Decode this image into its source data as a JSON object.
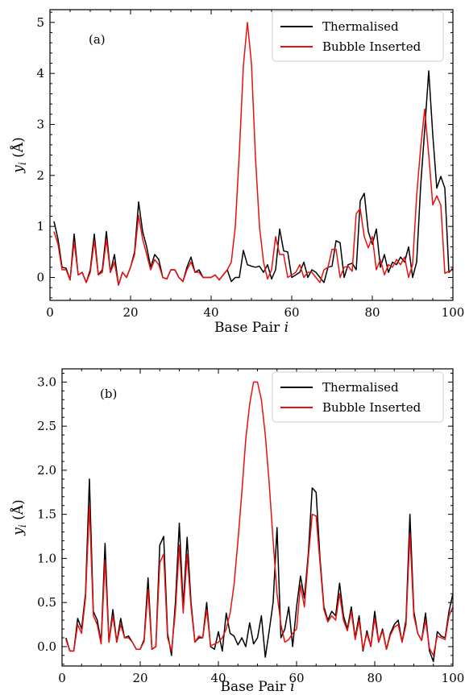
{
  "chart_data": [
    {
      "type": "line",
      "panel_label": "(a)",
      "xlabel": "Base Pair i",
      "ylabel": "y_i (Å)",
      "xlim": [
        0,
        100
      ],
      "ylim": [
        -0.45,
        5.25
      ],
      "x_ticks": [
        0,
        20,
        40,
        60,
        80,
        100
      ],
      "y_ticks": [
        0,
        1,
        2,
        3,
        4,
        5
      ],
      "legend_position": "top-right",
      "grid": false,
      "x": [
        1,
        2,
        3,
        4,
        5,
        6,
        7,
        8,
        9,
        10,
        11,
        12,
        13,
        14,
        15,
        16,
        17,
        18,
        19,
        20,
        21,
        22,
        23,
        24,
        25,
        26,
        27,
        28,
        29,
        30,
        31,
        32,
        33,
        34,
        35,
        36,
        37,
        38,
        39,
        40,
        41,
        42,
        43,
        44,
        45,
        46,
        47,
        48,
        49,
        50,
        51,
        52,
        53,
        54,
        55,
        56,
        57,
        58,
        59,
        60,
        61,
        62,
        63,
        64,
        65,
        66,
        67,
        68,
        69,
        70,
        71,
        72,
        73,
        74,
        75,
        76,
        77,
        78,
        79,
        80,
        81,
        82,
        83,
        84,
        85,
        86,
        87,
        88,
        89,
        90,
        91,
        92,
        93,
        94,
        95,
        96,
        97,
        98,
        99,
        100
      ],
      "series": [
        {
          "name": "Thermalised",
          "color": "#000000",
          "values": [
            1.1,
            0.75,
            0.2,
            0.18,
            -0.05,
            0.85,
            0.05,
            0.1,
            -0.1,
            0.15,
            0.85,
            0.05,
            0.15,
            0.9,
            0.1,
            0.45,
            -0.15,
            0.1,
            0.0,
            0.2,
            0.5,
            1.48,
            0.9,
            0.6,
            0.2,
            0.45,
            0.35,
            0.0,
            -0.03,
            0.15,
            0.15,
            0.0,
            -0.08,
            0.2,
            0.4,
            0.1,
            0.15,
            0.0,
            0.0,
            0.0,
            0.05,
            -0.05,
            0.05,
            0.15,
            -0.08,
            0.0,
            0.0,
            0.53,
            0.25,
            0.22,
            0.2,
            0.22,
            0.1,
            0.25,
            -0.03,
            0.15,
            0.95,
            0.52,
            0.5,
            0.0,
            0.05,
            0.1,
            0.3,
            0.0,
            0.15,
            0.1,
            0.0,
            -0.1,
            0.2,
            0.22,
            0.72,
            0.68,
            0.0,
            0.25,
            0.28,
            0.15,
            1.5,
            1.65,
            0.9,
            0.65,
            0.95,
            0.2,
            0.45,
            0.1,
            0.3,
            0.25,
            0.4,
            0.3,
            0.6,
            0.0,
            0.3,
            1.8,
            2.9,
            4.05,
            2.8,
            1.75,
            1.98,
            1.75,
            0.1,
            0.18
          ]
        },
        {
          "name": "Bubble Inserted",
          "color": "#e8110f",
          "values": [
            0.9,
            0.65,
            0.15,
            0.15,
            -0.05,
            0.7,
            0.05,
            0.1,
            -0.1,
            0.1,
            0.72,
            0.05,
            0.1,
            0.75,
            0.1,
            0.3,
            -0.15,
            0.1,
            0.0,
            0.2,
            0.45,
            1.22,
            0.75,
            0.45,
            0.15,
            0.35,
            0.25,
            0.0,
            -0.03,
            0.15,
            0.15,
            0.0,
            -0.08,
            0.15,
            0.3,
            0.1,
            0.1,
            0.0,
            0.0,
            0.0,
            0.05,
            -0.05,
            0.05,
            0.15,
            0.3,
            1.0,
            2.45,
            4.15,
            5.0,
            4.2,
            2.35,
            1.0,
            0.3,
            -0.03,
            0.15,
            0.8,
            0.45,
            0.45,
            0.0,
            0.05,
            0.1,
            0.25,
            0.0,
            0.1,
            0.1,
            0.0,
            -0.1,
            0.15,
            0.2,
            0.55,
            0.55,
            0.0,
            0.2,
            0.22,
            0.12,
            1.25,
            1.35,
            0.8,
            0.58,
            0.8,
            0.15,
            0.35,
            0.05,
            0.25,
            0.2,
            0.35,
            0.25,
            0.4,
            0.0,
            0.25,
            1.6,
            2.55,
            3.3,
            2.4,
            1.42,
            1.6,
            1.42,
            0.08,
            0.12,
            0.15
          ]
        }
      ]
    },
    {
      "type": "line",
      "panel_label": "(b)",
      "xlabel": "Base Pair i",
      "ylabel": "y_i (Å)",
      "xlim": [
        0,
        100
      ],
      "ylim": [
        -0.22,
        3.15
      ],
      "x_ticks": [
        0,
        20,
        40,
        60,
        80,
        100
      ],
      "y_ticks": [
        0.0,
        0.5,
        1.0,
        1.5,
        2.0,
        2.5,
        3.0
      ],
      "legend_position": "top-right",
      "grid": false,
      "x": [
        1,
        2,
        3,
        4,
        5,
        6,
        7,
        8,
        9,
        10,
        11,
        12,
        13,
        14,
        15,
        16,
        17,
        18,
        19,
        20,
        21,
        22,
        23,
        24,
        25,
        26,
        27,
        28,
        29,
        30,
        31,
        32,
        33,
        34,
        35,
        36,
        37,
        38,
        39,
        40,
        41,
        42,
        43,
        44,
        45,
        46,
        47,
        48,
        49,
        50,
        51,
        52,
        53,
        54,
        55,
        56,
        57,
        58,
        59,
        60,
        61,
        62,
        63,
        64,
        65,
        66,
        67,
        68,
        69,
        70,
        71,
        72,
        73,
        74,
        75,
        76,
        77,
        78,
        79,
        80,
        81,
        82,
        83,
        84,
        85,
        86,
        87,
        88,
        89,
        90,
        91,
        92,
        93,
        94,
        95,
        96,
        97,
        98,
        99,
        100
      ],
      "series": [
        {
          "name": "Thermalised",
          "color": "#000000",
          "values": [
            0.1,
            -0.05,
            -0.05,
            0.32,
            0.2,
            0.6,
            1.9,
            0.4,
            0.3,
            0.05,
            1.17,
            0.05,
            0.42,
            0.05,
            0.32,
            0.1,
            0.12,
            0.05,
            -0.03,
            -0.03,
            0.08,
            0.78,
            -0.03,
            0.0,
            1.15,
            1.25,
            0.15,
            -0.1,
            0.5,
            1.4,
            0.45,
            1.24,
            0.5,
            0.05,
            0.1,
            0.1,
            0.5,
            0.0,
            -0.03,
            0.17,
            -0.05,
            0.38,
            0.15,
            0.12,
            0.02,
            0.1,
            0.0,
            0.27,
            0.03,
            0.1,
            0.35,
            -0.12,
            0.18,
            0.5,
            1.35,
            0.1,
            0.2,
            0.45,
            0.0,
            0.45,
            0.8,
            0.55,
            1.05,
            1.8,
            1.75,
            1.0,
            0.45,
            0.3,
            0.4,
            0.35,
            0.72,
            0.35,
            0.2,
            0.45,
            0.1,
            0.35,
            -0.05,
            0.18,
            0.0,
            0.4,
            0.05,
            0.2,
            -0.03,
            0.15,
            0.25,
            0.3,
            0.05,
            0.3,
            1.5,
            0.4,
            0.15,
            0.07,
            0.38,
            -0.05,
            -0.17,
            0.17,
            0.12,
            0.1,
            0.4,
            0.6
          ]
        },
        {
          "name": "Bubble Inserted",
          "color": "#e8110f",
          "values": [
            0.08,
            -0.05,
            -0.05,
            0.25,
            0.15,
            0.55,
            1.6,
            0.35,
            0.25,
            0.03,
            0.98,
            0.05,
            0.35,
            0.05,
            0.25,
            0.1,
            0.1,
            0.05,
            -0.03,
            -0.03,
            0.06,
            0.65,
            -0.03,
            0.0,
            0.95,
            1.05,
            0.1,
            -0.05,
            0.4,
            1.15,
            0.38,
            1.05,
            0.45,
            0.05,
            0.12,
            0.1,
            0.42,
            0.01,
            0.03,
            0.05,
            0.1,
            0.2,
            0.38,
            0.7,
            1.2,
            1.75,
            2.35,
            2.75,
            3.0,
            3.0,
            2.8,
            2.4,
            1.85,
            1.2,
            0.6,
            0.25,
            0.05,
            0.08,
            0.15,
            0.2,
            0.7,
            0.45,
            1.0,
            1.5,
            1.48,
            0.95,
            0.42,
            0.28,
            0.35,
            0.3,
            0.6,
            0.3,
            0.18,
            0.4,
            0.08,
            0.3,
            -0.03,
            0.15,
            0.0,
            0.32,
            0.05,
            0.18,
            -0.03,
            0.13,
            0.22,
            0.25,
            0.05,
            0.25,
            1.28,
            0.35,
            0.15,
            0.07,
            0.3,
            -0.02,
            -0.1,
            0.12,
            0.1,
            0.08,
            0.35,
            0.45
          ]
        }
      ]
    }
  ]
}
